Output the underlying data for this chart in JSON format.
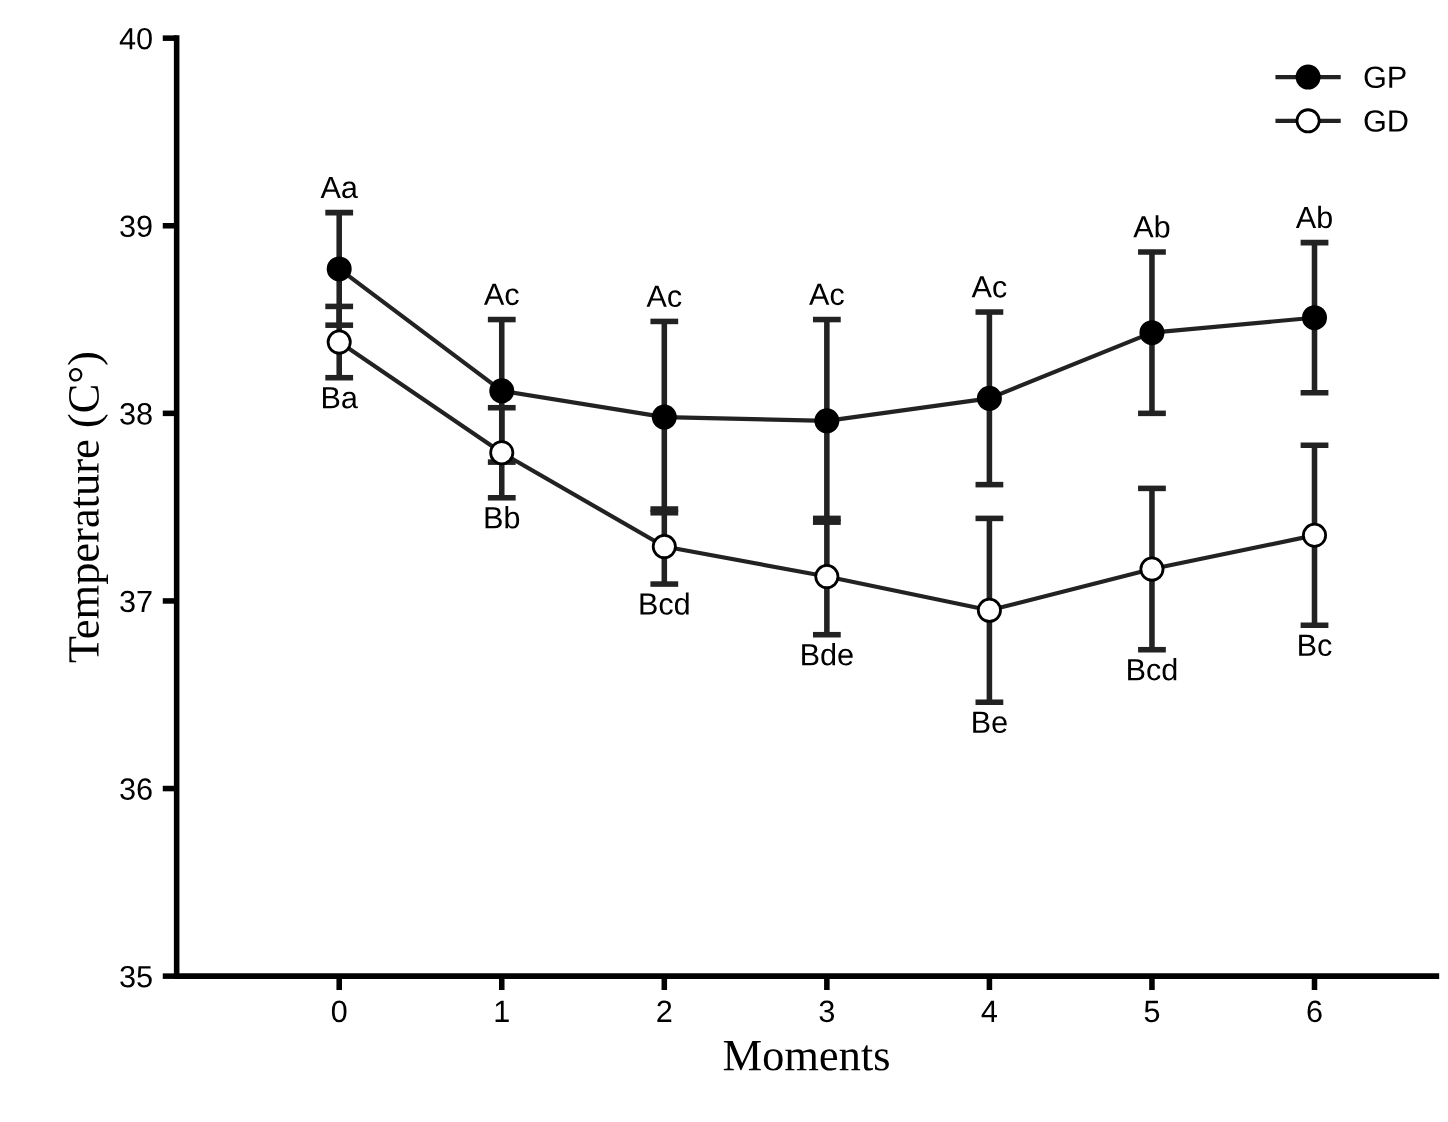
{
  "chart_data": {
    "type": "line",
    "xlabel": "Moments",
    "ylabel": "Temperature (C°)",
    "x": [
      0,
      1,
      2,
      3,
      4,
      5,
      6
    ],
    "xlim": [
      -1,
      6.75
    ],
    "xticks": [
      0,
      1,
      2,
      3,
      4,
      5,
      6
    ],
    "ylim": [
      35,
      40
    ],
    "yticks": [
      35,
      36,
      37,
      38,
      39,
      40
    ],
    "series": [
      {
        "name": "GP",
        "color": "#000000",
        "values": [
          38.77,
          38.12,
          37.98,
          37.96,
          38.08,
          38.43,
          38.51
        ],
        "errors": [
          0.3,
          0.38,
          0.51,
          0.54,
          0.46,
          0.43,
          0.4
        ]
      },
      {
        "name": "GD",
        "color": "#ffffff",
        "values": [
          38.38,
          37.79,
          37.29,
          37.13,
          36.95,
          37.17,
          37.35
        ],
        "errors": [
          0.19,
          0.24,
          0.2,
          0.31,
          0.49,
          0.43,
          0.48
        ]
      }
    ],
    "annotations": [
      {
        "text": "Aa",
        "x": 0,
        "y": 39.07
      },
      {
        "text": "Ac",
        "x": 1,
        "y": 38.5
      },
      {
        "text": "Ac",
        "x": 2,
        "y": 38.49
      },
      {
        "text": "Ac",
        "x": 3,
        "y": 38.5
      },
      {
        "text": "Ac",
        "x": 4,
        "y": 38.54
      },
      {
        "text": "Ab",
        "x": 5,
        "y": 38.86
      },
      {
        "text": "Ab",
        "x": 6,
        "y": 38.91
      },
      {
        "text": "Ba",
        "x": 0,
        "y": 38.19
      },
      {
        "text": "Bb",
        "x": 1,
        "y": 37.55
      },
      {
        "text": "Bcd",
        "x": 2,
        "y": 37.09
      },
      {
        "text": "Bde",
        "x": 3,
        "y": 36.82
      },
      {
        "text": "Be",
        "x": 4,
        "y": 36.46
      },
      {
        "text": "Bcd",
        "x": 5,
        "y": 36.74
      },
      {
        "text": "Bc",
        "x": 6,
        "y": 36.87
      }
    ],
    "marker": "circle",
    "line_style": "solid",
    "legend": "top right",
    "grid": false
  }
}
